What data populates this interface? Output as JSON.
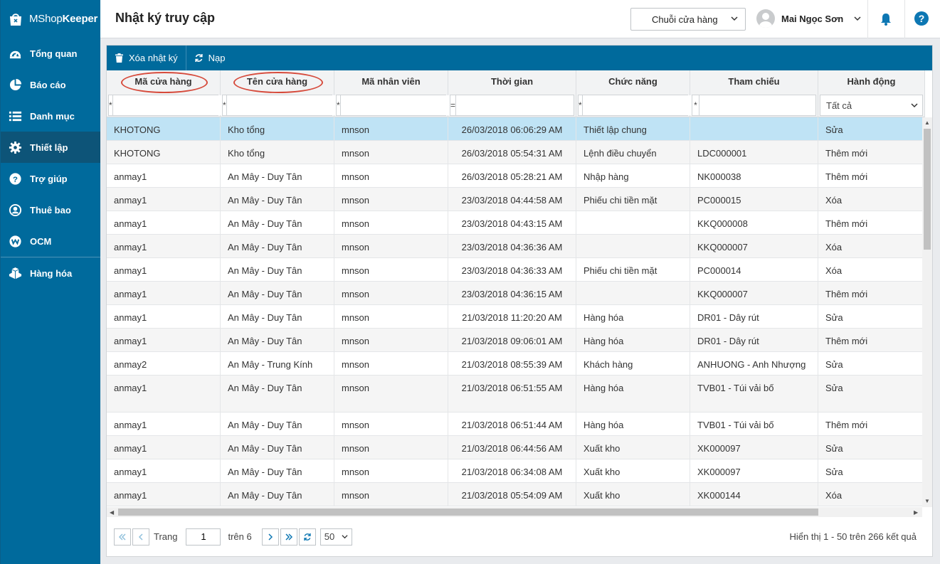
{
  "app": {
    "logo_text_plain": "MShop",
    "logo_text_bold": "Keeper"
  },
  "sidebar": {
    "items": [
      {
        "label": "Tổng quan",
        "icon": "dashboard-icon"
      },
      {
        "label": "Báo cáo",
        "icon": "pie-chart-icon"
      },
      {
        "label": "Danh mục",
        "icon": "list-icon"
      },
      {
        "label": "Thiết lập",
        "icon": "gear-icon",
        "active": true
      },
      {
        "label": "Trợ giúp",
        "icon": "help-icon"
      },
      {
        "label": "Thuê bao",
        "icon": "user-icon"
      },
      {
        "label": "OCM",
        "icon": "ocm-icon"
      },
      {
        "label": "Hàng hóa",
        "icon": "boxes-icon"
      }
    ]
  },
  "header": {
    "title": "Nhật ký truy cập",
    "chain_select": "Chuỗi cửa hàng",
    "user_name": "Mai Ngọc Sơn"
  },
  "toolbar": {
    "delete_label": "Xóa nhật ký",
    "reload_label": "Nạp"
  },
  "columns": [
    {
      "label": "Mã cửa hàng",
      "op": "*"
    },
    {
      "label": "Tên cửa hàng",
      "op": "*"
    },
    {
      "label": "Mã nhân viên",
      "op": "*"
    },
    {
      "label": "Thời gian",
      "op": "="
    },
    {
      "label": "Chức năng",
      "op": "*"
    },
    {
      "label": "Tham chiếu",
      "op": "*"
    },
    {
      "label": "Hành động",
      "filter_value": "Tất cả"
    }
  ],
  "rows": [
    [
      "KHOTONG",
      "Kho tổng",
      "mnson",
      "26/03/2018 06:06:29 AM",
      "Thiết lập chung",
      "",
      "Sửa"
    ],
    [
      "KHOTONG",
      "Kho tổng",
      "mnson",
      "26/03/2018 05:54:31 AM",
      "Lệnh điều chuyển",
      "LDC000001",
      "Thêm mới"
    ],
    [
      "anmay1",
      "An Mây - Duy Tân",
      "mnson",
      "26/03/2018 05:28:21 AM",
      "Nhập hàng",
      "NK000038",
      "Thêm mới"
    ],
    [
      "anmay1",
      "An Mây - Duy Tân",
      "mnson",
      "23/03/2018 04:44:58 AM",
      "Phiếu chi tiền mặt",
      "PC000015",
      "Xóa"
    ],
    [
      "anmay1",
      "An Mây - Duy Tân",
      "mnson",
      "23/03/2018 04:43:15 AM",
      "",
      "KKQ000008",
      "Thêm mới"
    ],
    [
      "anmay1",
      "An Mây - Duy Tân",
      "mnson",
      "23/03/2018 04:36:36 AM",
      "",
      "KKQ000007",
      "Xóa"
    ],
    [
      "anmay1",
      "An Mây - Duy Tân",
      "mnson",
      "23/03/2018 04:36:33 AM",
      "Phiếu chi tiền mặt",
      "PC000014",
      "Xóa"
    ],
    [
      "anmay1",
      "An Mây - Duy Tân",
      "mnson",
      "23/03/2018 04:36:15 AM",
      "",
      "KKQ000007",
      "Thêm mới"
    ],
    [
      "anmay1",
      "An Mây - Duy Tân",
      "mnson",
      "21/03/2018 11:20:20 AM",
      "Hàng hóa",
      "DR01 - Dây rút",
      "Sửa"
    ],
    [
      "anmay1",
      "An Mây - Duy Tân",
      "mnson",
      "21/03/2018 09:06:01 AM",
      "Hàng hóa",
      "DR01 - Dây rút",
      "Thêm mới"
    ],
    [
      "anmay2",
      "An Mây - Trung Kính",
      "mnson",
      "21/03/2018 08:55:39 AM",
      "Khách hàng",
      "ANHUONG - Anh Nhượng",
      "Sửa"
    ],
    [
      "anmay1",
      "An Mây - Duy Tân",
      "mnson",
      "21/03/2018 06:51:55 AM",
      "Hàng hóa",
      "TVB01 - Túi vải bố",
      "Sửa"
    ],
    [
      "anmay1",
      "An Mây - Duy Tân",
      "mnson",
      "21/03/2018 06:51:44 AM",
      "Hàng hóa",
      "TVB01 - Túi vải bố",
      "Thêm mới"
    ],
    [
      "anmay1",
      "An Mây - Duy Tân",
      "mnson",
      "21/03/2018 06:44:56 AM",
      "Xuất kho",
      "XK000097",
      "Sửa"
    ],
    [
      "anmay1",
      "An Mây - Duy Tân",
      "mnson",
      "21/03/2018 06:34:08 AM",
      "Xuất kho",
      "XK000097",
      "Sửa"
    ],
    [
      "anmay1",
      "An Mây - Duy Tân",
      "mnson",
      "21/03/2018 05:54:09 AM",
      "Xuất kho",
      "XK000144",
      "Xóa"
    ]
  ],
  "pager": {
    "page_label": "Trang",
    "current_page": "1",
    "of_label": "trên 6",
    "page_size": "50",
    "summary": "Hiển thị 1 - 50 trên 266 kết quả"
  },
  "colors": {
    "primary": "#006a9c",
    "selected_row": "#bfe3f5",
    "highlight_oval": "#d64a3b"
  }
}
